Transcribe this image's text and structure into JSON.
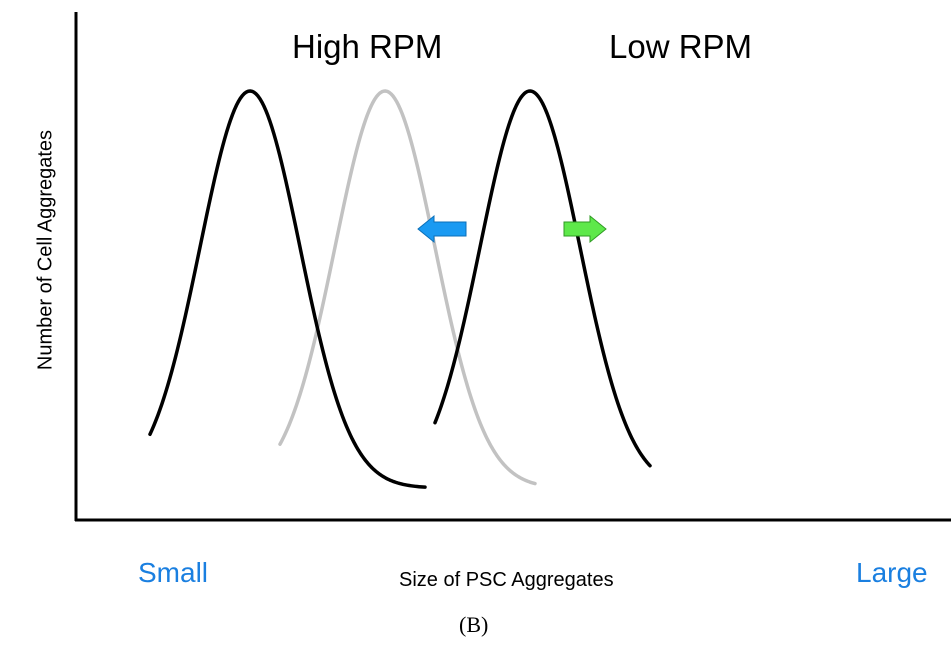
{
  "chart_data": {
    "type": "line",
    "title": "",
    "xlabel": "Size of PSC Aggregates",
    "ylabel": "Number of Cell Aggregates",
    "x_min_label": "Small",
    "x_max_label": "Large",
    "x_range": [
      0,
      100
    ],
    "y_range": [
      0,
      1
    ],
    "grid": false,
    "legend": "none",
    "series": [
      {
        "name": "High RPM",
        "color": "#000000",
        "shape": "gaussian",
        "center": 25,
        "sigma": 5,
        "peak": 1,
        "x_start": 15,
        "x_end": 42.5
      },
      {
        "color": "#c2c2c2",
        "shape": "gaussian",
        "center": 38.5,
        "sigma": 5,
        "peak": 1,
        "x_start": 28,
        "x_end": 53.5
      },
      {
        "name": "Low RPM",
        "color": "#000000",
        "shape": "gaussian",
        "center": 53,
        "sigma": 5,
        "peak": 1,
        "x_start": 43.5,
        "x_end": 65
      }
    ],
    "annotations": [
      {
        "type": "arrow",
        "direction": "left",
        "color": "#1a9af2",
        "meaning": "shift toward smaller aggregates"
      },
      {
        "type": "arrow",
        "direction": "right",
        "color": "#5ee84a",
        "meaning": "shift toward larger aggregates"
      }
    ]
  },
  "labels": {
    "high_rpm": "High RPM",
    "low_rpm": "Low RPM",
    "x_axis": "Size of PSC Aggregates",
    "y_axis": "Number of Cell Aggregates",
    "small": "Small",
    "large": "Large",
    "panel": "(B)"
  },
  "colors": {
    "axis": "#000000",
    "end_labels": "#1a7fe0"
  }
}
